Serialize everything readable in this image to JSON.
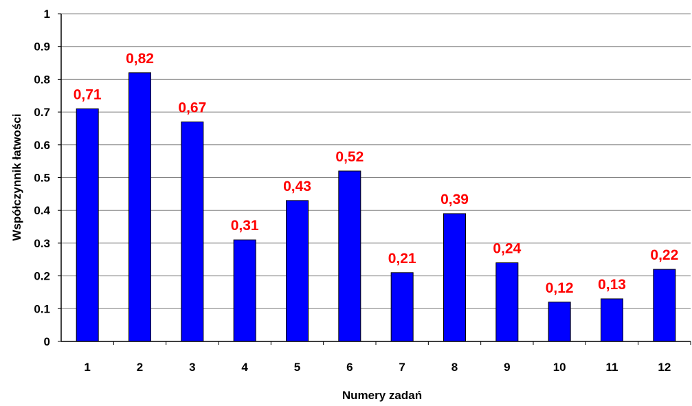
{
  "chart_data": {
    "type": "bar",
    "title": "",
    "xlabel": "Numery zadań",
    "ylabel": "Współczynnik łatwości",
    "ylim": [
      0,
      1
    ],
    "y_ticks": [
      "0",
      "0.1",
      "0.2",
      "0.3",
      "0.4",
      "0.5",
      "0.6",
      "0.7",
      "0.8",
      "0.9",
      "1"
    ],
    "categories": [
      "1",
      "2",
      "3",
      "4",
      "5",
      "6",
      "7",
      "8",
      "9",
      "10",
      "11",
      "12"
    ],
    "values": [
      0.71,
      0.82,
      0.67,
      0.31,
      0.43,
      0.52,
      0.21,
      0.39,
      0.24,
      0.12,
      0.13,
      0.22
    ],
    "data_labels": [
      "0,71",
      "0,82",
      "0,67",
      "0,31",
      "0,43",
      "0,52",
      "0,21",
      "0,39",
      "0,24",
      "0,12",
      "0,13",
      "0,22"
    ],
    "grid": true,
    "legend": "none",
    "colors": {
      "bar_fill": "#0000ff",
      "bar_stroke": "#000000",
      "data_label": "#ff0000",
      "gridline": "#808080",
      "axis": "#000000"
    }
  }
}
